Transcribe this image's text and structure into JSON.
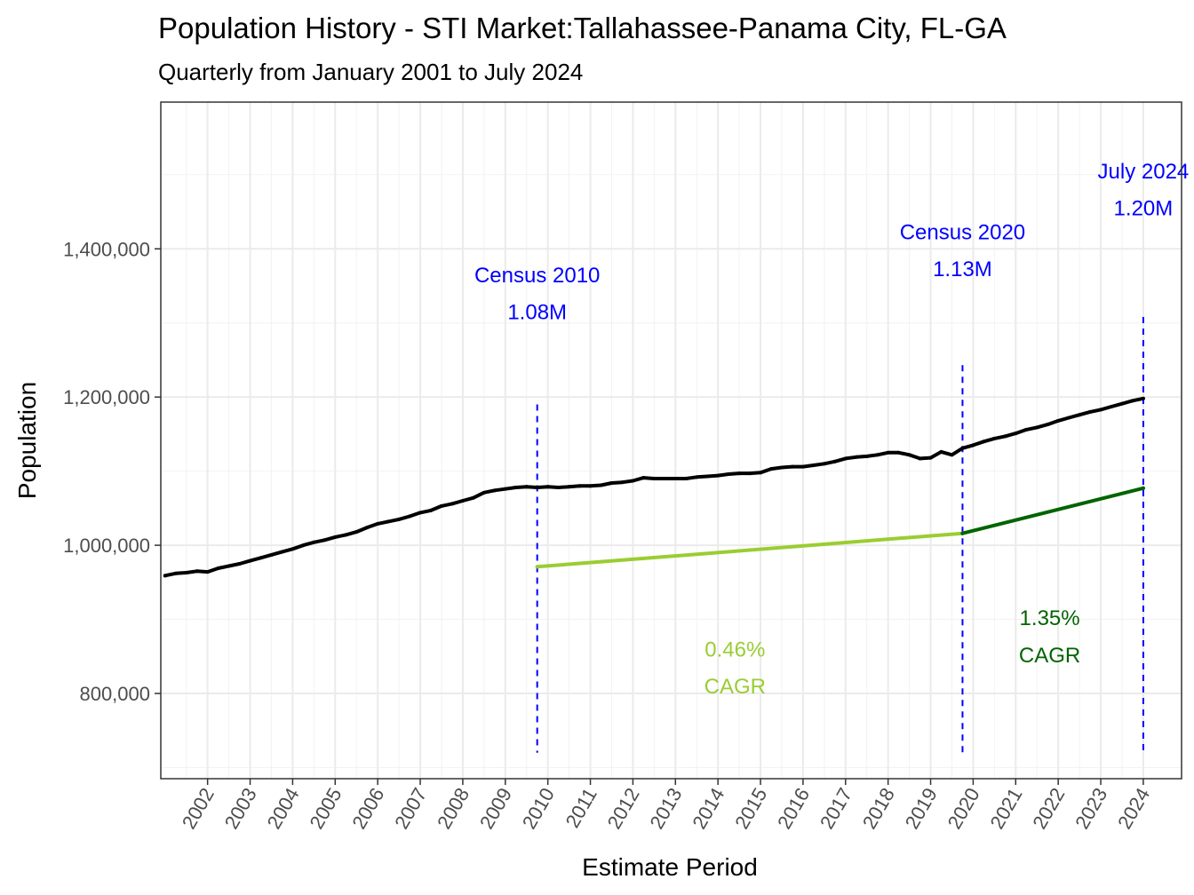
{
  "chart_data": {
    "type": "line",
    "title": "Population History - STI Market:Tallahassee-Panama City, FL-GA",
    "subtitle": "Quarterly from January 2001 to July 2024",
    "xlabel": "Estimate Period",
    "ylabel": "Population",
    "xlim": [
      2001.4,
      2025.4
    ],
    "ylim": [
      685000,
      1598000
    ],
    "x_ticks": [
      "2002",
      "2003",
      "2004",
      "2005",
      "2006",
      "2007",
      "2008",
      "2009",
      "2010",
      "2011",
      "2012",
      "2013",
      "2014",
      "2015",
      "2016",
      "2017",
      "2018",
      "2019",
      "2020",
      "2021",
      "2022",
      "2023",
      "2024"
    ],
    "y_ticks": [
      800000,
      1000000,
      1200000,
      1400000
    ],
    "y_tick_labels": [
      "800,000",
      "1,000,000",
      "1,200,000",
      "1,400,000"
    ],
    "grid": true,
    "series": [
      {
        "color": "#000000",
        "x": [
          2001.5,
          2001.75,
          2002.0,
          2002.25,
          2002.5,
          2002.75,
          2003.0,
          2003.25,
          2003.5,
          2003.75,
          2004.0,
          2004.25,
          2004.5,
          2004.75,
          2005.0,
          2005.25,
          2005.5,
          2005.75,
          2006.0,
          2006.25,
          2006.5,
          2006.75,
          2007.0,
          2007.25,
          2007.5,
          2007.75,
          2008.0,
          2008.25,
          2008.5,
          2008.75,
          2009.0,
          2009.25,
          2009.5,
          2009.75,
          2010.0,
          2010.25,
          2010.5,
          2010.75,
          2011.0,
          2011.25,
          2011.5,
          2011.75,
          2012.0,
          2012.25,
          2012.5,
          2012.75,
          2013.0,
          2013.25,
          2013.5,
          2013.75,
          2014.0,
          2014.25,
          2014.5,
          2014.75,
          2015.0,
          2015.25,
          2015.5,
          2015.75,
          2016.0,
          2016.25,
          2016.5,
          2016.75,
          2017.0,
          2017.25,
          2017.5,
          2017.75,
          2018.0,
          2018.25,
          2018.5,
          2018.75,
          2019.0,
          2019.25,
          2019.5,
          2019.75,
          2020.0,
          2020.25,
          2020.5,
          2020.75,
          2021.0,
          2021.25,
          2021.5,
          2021.75,
          2022.0,
          2022.25,
          2022.5,
          2022.75,
          2023.0,
          2023.25,
          2023.5,
          2023.75,
          2024.0,
          2024.25,
          2024.5
        ],
        "values": [
          959000,
          962000,
          963000,
          965000,
          964000,
          969000,
          972000,
          975000,
          979000,
          983000,
          987000,
          991000,
          995000,
          1000000,
          1004000,
          1007000,
          1011000,
          1014000,
          1018000,
          1024000,
          1029000,
          1032000,
          1035000,
          1039000,
          1044000,
          1047000,
          1053000,
          1056000,
          1060000,
          1064000,
          1071000,
          1074000,
          1076000,
          1078000,
          1079000,
          1078000,
          1079000,
          1078000,
          1079000,
          1080000,
          1080000,
          1081000,
          1084000,
          1085000,
          1087000,
          1091000,
          1090000,
          1090000,
          1090000,
          1090000,
          1092000,
          1093000,
          1094000,
          1096000,
          1097000,
          1097000,
          1098000,
          1103000,
          1105000,
          1106000,
          1106000,
          1108000,
          1110000,
          1113000,
          1117000,
          1119000,
          1120000,
          1122000,
          1125000,
          1125000,
          1122000,
          1117000,
          1118000,
          1126000,
          1122000,
          1131000,
          1135000,
          1140000,
          1144000,
          1147000,
          1151000,
          1156000,
          1159000,
          1163000,
          1168000,
          1172000,
          1176000,
          1180000,
          1183000,
          1187000,
          1191000,
          1195000,
          1198000
        ]
      },
      {
        "color": "#9acd32",
        "x": [
          2010.25,
          2020.25
        ],
        "values": [
          971000,
          1016000
        ]
      },
      {
        "color": "#006400",
        "x": [
          2020.25,
          2024.5
        ],
        "values": [
          1016000,
          1077000
        ]
      }
    ],
    "vlines": [
      {
        "x": 2010.25,
        "y_top": 1190000,
        "y_bottom": 720000,
        "color": "#0000ff",
        "style": "dashed"
      },
      {
        "x": 2020.25,
        "y_top": 1243000,
        "y_bottom": 720000,
        "color": "#0000ff",
        "style": "dashed"
      },
      {
        "x": 2024.5,
        "y_top": 1308000,
        "y_bottom": 720000,
        "color": "#0000ff",
        "style": "dashed"
      }
    ],
    "annotations": [
      {
        "label": "Census 2010",
        "value": "1.08M",
        "color": "#0000ff",
        "x": 2010.25,
        "y1": 1355000,
        "y2": 1305000
      },
      {
        "label": "Census 2020",
        "value": "1.13M",
        "color": "#0000ff",
        "x": 2020.25,
        "y1": 1413000,
        "y2": 1363000
      },
      {
        "label": "July 2024",
        "value": "1.20M",
        "color": "#0000ff",
        "x": 2024.5,
        "y1": 1495000,
        "y2": 1445000
      },
      {
        "label": "0.46%",
        "value": "CAGR",
        "color": "#9acd32",
        "x": 2014.9,
        "y1": 850000,
        "y2": 800000
      },
      {
        "label": "1.35%",
        "value": "CAGR",
        "color": "#006400",
        "x": 2022.3,
        "y1": 892000,
        "y2": 842000
      }
    ]
  }
}
